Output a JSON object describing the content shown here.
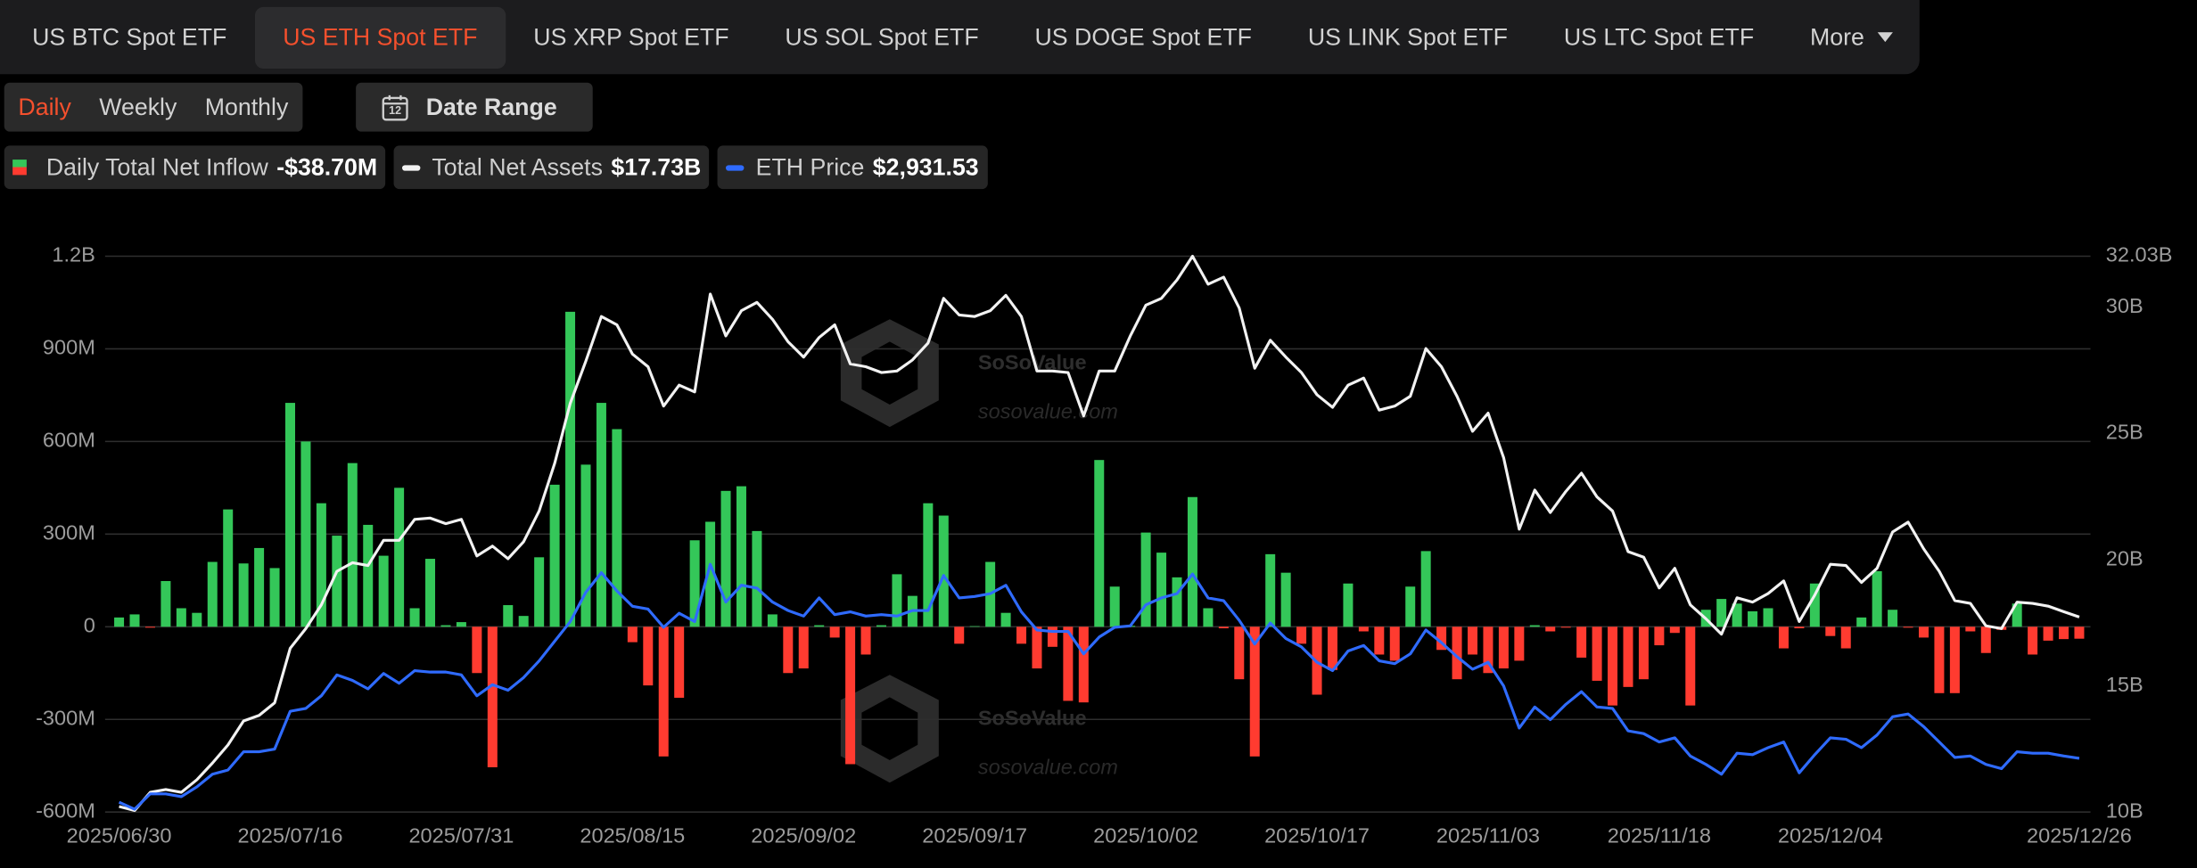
{
  "tabs": {
    "items": [
      "US BTC Spot ETF",
      "US ETH Spot ETF",
      "US XRP Spot ETF",
      "US SOL Spot ETF",
      "US DOGE Spot ETF",
      "US LINK Spot ETF",
      "US LTC Spot ETF",
      "More"
    ],
    "active": 1
  },
  "periods": {
    "items": [
      "Daily",
      "Weekly",
      "Monthly"
    ],
    "active": 0
  },
  "date_range": {
    "label": "Date Range",
    "icon_text": "12"
  },
  "watermark": {
    "brand": "SoSoValue",
    "url": "sosovalue.com"
  },
  "chart_data": {
    "type": "combo",
    "grid": true,
    "categories": [
      "2025/06/30",
      null,
      null,
      null,
      null,
      null,
      null,
      null,
      null,
      null,
      null,
      "2025/07/16",
      null,
      null,
      null,
      null,
      null,
      null,
      null,
      null,
      null,
      null,
      "2025/07/31",
      null,
      null,
      null,
      null,
      null,
      null,
      null,
      null,
      null,
      null,
      "2025/08/15",
      null,
      null,
      null,
      null,
      null,
      null,
      null,
      null,
      null,
      null,
      "2025/09/02",
      null,
      null,
      null,
      null,
      null,
      null,
      null,
      null,
      null,
      null,
      "2025/09/17",
      null,
      null,
      null,
      null,
      null,
      null,
      null,
      null,
      null,
      null,
      "2025/10/02",
      null,
      null,
      null,
      null,
      null,
      null,
      null,
      null,
      null,
      null,
      "2025/10/17",
      null,
      null,
      null,
      null,
      null,
      null,
      null,
      null,
      null,
      null,
      "2025/11/03",
      null,
      null,
      null,
      null,
      null,
      null,
      null,
      null,
      null,
      null,
      "2025/11/18",
      null,
      null,
      null,
      null,
      null,
      null,
      null,
      null,
      null,
      null,
      "2025/12/04",
      null,
      null,
      null,
      null,
      null,
      null,
      null,
      null,
      null,
      null,
      null,
      null,
      null,
      null,
      null,
      "2025/12/26"
    ],
    "ylim": [
      -600,
      1200
    ],
    "yticks": [
      {
        "value": -600,
        "label": "-600M"
      },
      {
        "value": -300,
        "label": "-300M"
      },
      0,
      {
        "value": 300,
        "label": "300M"
      },
      {
        "value": 600,
        "label": "600M"
      },
      {
        "value": 900,
        "label": "900M"
      },
      {
        "value": 1200,
        "label": "1.2B"
      }
    ],
    "y2lim": [
      10,
      32.03
    ],
    "y2ticks": [
      {
        "value": 10,
        "label": "10B"
      },
      {
        "value": 15,
        "label": "15B"
      },
      {
        "value": 20,
        "label": "20B"
      },
      {
        "value": 25,
        "label": "25B"
      },
      {
        "value": 30,
        "label": "30B"
      },
      {
        "value": 32.03,
        "label": "32.03B"
      }
    ],
    "y3lim": [
      2400,
      7900
    ],
    "series": [
      {
        "name": "Daily Total Net Inflow",
        "type": "bar",
        "color_positive": "#34c759",
        "color_negative": "#ff3b30",
        "latest_label": "-$38.70M",
        "values": [
          30,
          40,
          -3,
          148,
          60,
          45,
          210,
          380,
          205,
          255,
          190,
          725,
          600,
          400,
          295,
          530,
          330,
          230,
          450,
          60,
          220,
          5,
          15,
          -150,
          -455,
          70,
          35,
          225,
          460,
          1020,
          525,
          725,
          640,
          -50,
          -190,
          -420,
          -230,
          280,
          340,
          440,
          455,
          310,
          40,
          -150,
          -135,
          5,
          -35,
          -445,
          -90,
          5,
          170,
          100,
          400,
          360,
          -55,
          2,
          210,
          45,
          -55,
          -135,
          -65,
          -240,
          -245,
          540,
          130,
          3,
          305,
          240,
          160,
          420,
          60,
          -5,
          -170,
          -420,
          235,
          175,
          -55,
          -220,
          -140,
          140,
          -15,
          -90,
          -110,
          130,
          245,
          -75,
          -170,
          -90,
          -150,
          -135,
          -110,
          5,
          -15,
          -3,
          -100,
          -175,
          -255,
          -195,
          -170,
          -60,
          -20,
          -255,
          55,
          90,
          75,
          50,
          60,
          -70,
          -5,
          140,
          -30,
          -70,
          30,
          180,
          55,
          -3,
          -35,
          -215,
          -215,
          -15,
          -85,
          -10,
          75,
          -90,
          -45,
          -40,
          -38.7
        ]
      },
      {
        "name": "Total Net Assets",
        "type": "line",
        "axis": "y2",
        "color": "#f2f2f2",
        "latest_label": "$17.73B",
        "values": [
          10.22,
          10.06,
          10.78,
          10.89,
          10.78,
          11.28,
          11.94,
          12.66,
          13.61,
          13.83,
          14.33,
          16.49,
          17.27,
          18.21,
          19.54,
          19.88,
          19.77,
          20.77,
          20.77,
          21.6,
          21.65,
          21.43,
          21.6,
          20.15,
          20.54,
          20.04,
          20.71,
          21.93,
          23.82,
          26.2,
          27.87,
          29.64,
          29.31,
          28.15,
          27.65,
          26.09,
          26.92,
          26.65,
          30.53,
          28.87,
          29.87,
          30.2,
          29.53,
          28.64,
          28.03,
          28.81,
          29.31,
          27.76,
          27.65,
          27.42,
          27.48,
          27.92,
          28.59,
          30.36,
          29.7,
          29.64,
          29.87,
          30.48,
          29.64,
          27.48,
          27.48,
          27.42,
          25.7,
          27.48,
          27.48,
          28.87,
          30.09,
          30.36,
          31.09,
          32.03,
          30.92,
          31.2,
          29.98,
          27.59,
          28.7,
          28.03,
          27.42,
          26.54,
          26.04,
          26.92,
          27.2,
          25.93,
          26.09,
          26.48,
          28.37,
          27.65,
          26.48,
          25.09,
          25.81,
          24.04,
          21.21,
          22.76,
          21.87,
          22.71,
          23.43,
          22.49,
          21.93,
          20.32,
          20.1,
          18.88,
          19.66,
          18.21,
          17.66,
          17.05,
          18.49,
          18.32,
          18.66,
          19.16,
          17.55,
          18.6,
          19.82,
          19.77,
          19.1,
          19.66,
          21.1,
          21.49,
          20.43,
          19.54,
          18.38,
          18.27,
          17.38,
          17.27,
          18.32,
          18.27,
          18.16,
          17.94,
          17.73
        ]
      },
      {
        "name": "ETH Price",
        "type": "line",
        "axis": "y3",
        "color": "#2f6bff",
        "latest_label": "$2,931.53",
        "values": [
          2497,
          2428,
          2580,
          2580,
          2552,
          2649,
          2774,
          2816,
          2996,
          2996,
          3023,
          3397,
          3425,
          3550,
          3757,
          3702,
          3619,
          3771,
          3674,
          3799,
          3785,
          3785,
          3757,
          3550,
          3660,
          3605,
          3730,
          3896,
          4090,
          4284,
          4574,
          4768,
          4588,
          4436,
          4408,
          4228,
          4367,
          4284,
          4851,
          4478,
          4644,
          4616,
          4478,
          4394,
          4339,
          4519,
          4353,
          4381,
          4339,
          4353,
          4339,
          4394,
          4394,
          4741,
          4519,
          4533,
          4561,
          4644,
          4381,
          4201,
          4187,
          4187,
          3965,
          4131,
          4228,
          4242,
          4450,
          4519,
          4561,
          4755,
          4519,
          4491,
          4297,
          4062,
          4270,
          4117,
          4034,
          3882,
          3799,
          3993,
          4048,
          3896,
          3868,
          3965,
          4201,
          4076,
          3937,
          3813,
          3882,
          3647,
          3231,
          3439,
          3314,
          3466,
          3591,
          3439,
          3425,
          3203,
          3176,
          3093,
          3134,
          2954,
          2871,
          2774,
          2982,
          2968,
          3037,
          3093,
          2788,
          2968,
          3134,
          3120,
          3037,
          3162,
          3342,
          3370,
          3245,
          3093,
          2940,
          2954,
          2871,
          2829,
          2996,
          2982,
          2982,
          2954,
          2931.53
        ]
      }
    ]
  }
}
